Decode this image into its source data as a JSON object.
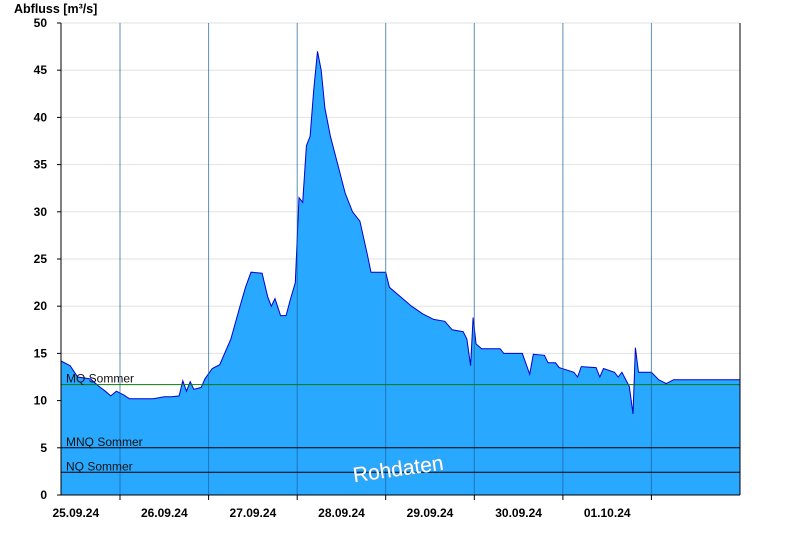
{
  "chart_data": {
    "type": "area",
    "ylabel": "Abfluss [m³/s]",
    "ylim": [
      0,
      50
    ],
    "yticks": [
      0,
      5,
      10,
      15,
      20,
      25,
      30,
      35,
      40,
      45,
      50
    ],
    "xlim": [
      "2024-09-24T20:00",
      "2024-10-02T12:00"
    ],
    "day_separators": [
      "2024-09-25T12:00",
      "2024-09-26T12:00",
      "2024-09-27T12:00",
      "2024-09-28T12:00",
      "2024-09-29T12:00",
      "2024-09-30T12:00",
      "2024-10-01T12:00"
    ],
    "xtick_labels": [
      {
        "date": "2024-09-25T00:00",
        "label": "25.09.24"
      },
      {
        "date": "2024-09-26T00:00",
        "label": "26.09.24"
      },
      {
        "date": "2024-09-27T00:00",
        "label": "27.09.24"
      },
      {
        "date": "2024-09-28T00:00",
        "label": "28.09.24"
      },
      {
        "date": "2024-09-29T00:00",
        "label": "29.09.24"
      },
      {
        "date": "2024-09-30T00:00",
        "label": "30.09.24"
      },
      {
        "date": "2024-10-01T00:00",
        "label": "01.10.24"
      }
    ],
    "series": [
      {
        "fill_color": "#29a8ff",
        "line_color": "#0000cc",
        "points": [
          [
            "2024-09-24T20:00",
            14.2
          ],
          [
            "2024-09-24T22:30",
            13.7
          ],
          [
            "2024-09-25T00:30",
            12.5
          ],
          [
            "2024-09-25T04:00",
            12.3
          ],
          [
            "2024-09-25T06:00",
            11.6
          ],
          [
            "2024-09-25T08:00",
            11.0
          ],
          [
            "2024-09-25T09:30",
            10.5
          ],
          [
            "2024-09-25T11:00",
            11.0
          ],
          [
            "2024-09-25T13:00",
            10.6
          ],
          [
            "2024-09-25T14:30",
            10.2
          ],
          [
            "2024-09-25T21:00",
            10.2
          ],
          [
            "2024-09-26T00:00",
            10.4
          ],
          [
            "2024-09-26T02:00",
            10.4
          ],
          [
            "2024-09-26T04:00",
            10.5
          ],
          [
            "2024-09-26T05:00",
            12.1
          ],
          [
            "2024-09-26T06:00",
            11.0
          ],
          [
            "2024-09-26T07:00",
            12.0
          ],
          [
            "2024-09-26T08:00",
            11.2
          ],
          [
            "2024-09-26T10:00",
            11.4
          ],
          [
            "2024-09-26T11:00",
            12.3
          ],
          [
            "2024-09-26T13:00",
            13.4
          ],
          [
            "2024-09-26T15:00",
            13.8
          ],
          [
            "2024-09-26T18:00",
            16.5
          ],
          [
            "2024-09-26T20:30",
            20.0
          ],
          [
            "2024-09-26T22:00",
            22.0
          ],
          [
            "2024-09-26T23:30",
            23.6
          ],
          [
            "2024-09-27T02:30",
            23.5
          ],
          [
            "2024-09-27T04:00",
            21.0
          ],
          [
            "2024-09-27T05:00",
            20.0
          ],
          [
            "2024-09-27T06:00",
            20.8
          ],
          [
            "2024-09-27T07:30",
            19.0
          ],
          [
            "2024-09-27T09:00",
            19.0
          ],
          [
            "2024-09-27T10:00",
            20.5
          ],
          [
            "2024-09-27T11:30",
            22.5
          ],
          [
            "2024-09-27T12:30",
            31.5
          ],
          [
            "2024-09-27T13:30",
            31.0
          ],
          [
            "2024-09-27T14:30",
            37.0
          ],
          [
            "2024-09-27T15:30",
            38.0
          ],
          [
            "2024-09-27T16:30",
            43.0
          ],
          [
            "2024-09-27T17:30",
            47.0
          ],
          [
            "2024-09-27T18:30",
            45.0
          ],
          [
            "2024-09-27T19:30",
            41.0
          ],
          [
            "2024-09-27T21:00",
            38.0
          ],
          [
            "2024-09-27T23:00",
            35.0
          ],
          [
            "2024-09-28T01:00",
            32.0
          ],
          [
            "2024-09-28T03:00",
            30.0
          ],
          [
            "2024-09-28T05:00",
            29.0
          ],
          [
            "2024-09-28T07:00",
            25.5
          ],
          [
            "2024-09-28T08:00",
            23.6
          ],
          [
            "2024-09-28T12:00",
            23.6
          ],
          [
            "2024-09-28T13:00",
            22.0
          ],
          [
            "2024-09-28T16:00",
            21.0
          ],
          [
            "2024-09-28T19:00",
            20.0
          ],
          [
            "2024-09-28T22:00",
            19.2
          ],
          [
            "2024-09-29T01:00",
            18.6
          ],
          [
            "2024-09-29T04:00",
            18.4
          ],
          [
            "2024-09-29T06:00",
            17.5
          ],
          [
            "2024-09-29T09:00",
            17.3
          ],
          [
            "2024-09-29T10:00",
            16.5
          ],
          [
            "2024-09-29T11:00",
            13.7
          ],
          [
            "2024-09-29T11:40",
            18.8
          ],
          [
            "2024-09-29T12:30",
            16.0
          ],
          [
            "2024-09-29T14:00",
            15.5
          ],
          [
            "2024-09-29T19:00",
            15.5
          ],
          [
            "2024-09-29T20:00",
            15.0
          ],
          [
            "2024-09-30T01:00",
            15.0
          ],
          [
            "2024-09-30T03:00",
            12.8
          ],
          [
            "2024-09-30T04:00",
            14.9
          ],
          [
            "2024-09-30T07:00",
            14.8
          ],
          [
            "2024-09-30T08:00",
            14.0
          ],
          [
            "2024-09-30T10:00",
            14.0
          ],
          [
            "2024-09-30T11:00",
            13.5
          ],
          [
            "2024-09-30T15:00",
            13.0
          ],
          [
            "2024-09-30T16:00",
            12.5
          ],
          [
            "2024-09-30T17:00",
            13.6
          ],
          [
            "2024-09-30T21:00",
            13.5
          ],
          [
            "2024-09-30T22:00",
            12.5
          ],
          [
            "2024-09-30T23:00",
            13.4
          ],
          [
            "2024-10-01T02:00",
            13.0
          ],
          [
            "2024-10-01T03:00",
            12.5
          ],
          [
            "2024-10-01T04:00",
            13.0
          ],
          [
            "2024-10-01T06:00",
            11.5
          ],
          [
            "2024-10-01T07:00",
            8.6
          ],
          [
            "2024-10-01T07:40",
            15.6
          ],
          [
            "2024-10-01T08:30",
            13.0
          ],
          [
            "2024-10-01T12:00",
            13.0
          ],
          [
            "2024-10-01T14:00",
            12.2
          ],
          [
            "2024-10-01T16:00",
            11.8
          ],
          [
            "2024-10-01T18:00",
            12.2
          ],
          [
            "2024-10-02T12:00",
            12.2
          ]
        ]
      }
    ],
    "reference_lines": [
      {
        "label": "MQ Sommer",
        "value": 11.7,
        "color": "#0a7a0a"
      },
      {
        "label": "MNQ Sommer",
        "value": 5.0,
        "color": "#000000"
      },
      {
        "label": "NQ Sommer",
        "value": 2.4,
        "color": "#000000"
      }
    ],
    "watermark": "Rohdaten",
    "grid": "horizontal"
  }
}
